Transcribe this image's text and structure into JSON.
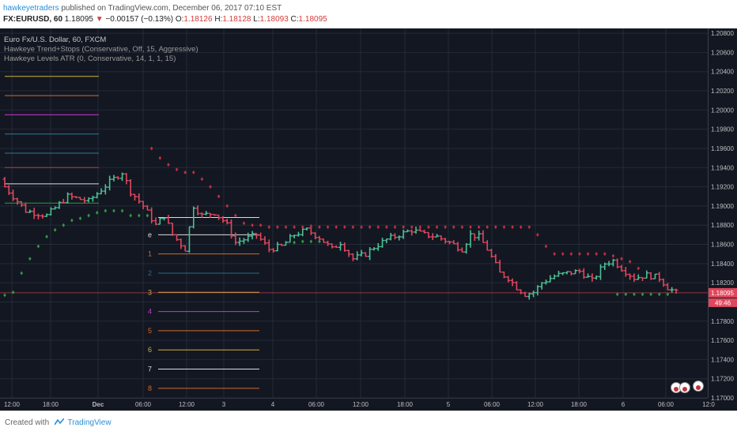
{
  "header": {
    "author": "hawkeyetraders",
    "published_text": "published on TradingView.com, December 06, 2017 07:10 EST",
    "symbol": "FX:EURUSD, 60",
    "last": "1.18095",
    "change": "−0.00157 (−0.13%)",
    "open_label": "O:",
    "open": "1.18126",
    "high_label": "H:",
    "high": "1.18128",
    "low_label": "L:",
    "low": "1.18093",
    "close_label": "C:",
    "close": "1.18095"
  },
  "legend": {
    "title": "Euro Fx/U.S. Dollar, 60, FXCM",
    "study1": "Hawkeye Trend+Stops (Conservative, Off, 15, Aggressive)",
    "study2": "Hawkeye Levels ATR (0, Conservative, 14, 1, 1, 15)"
  },
  "footer": {
    "created_with": "Created with",
    "brand": "TradingView"
  },
  "colors": {
    "background": "#131722",
    "grid": "#232a38",
    "up": "#4cbf94",
    "down": "#e0475d",
    "stop_red": "#c0313d",
    "stop_green": "#2f9a40",
    "price_tag": "#e0475d",
    "axis_text": "#bfbfbf"
  },
  "chart_data": {
    "type": "ohlc",
    "symbol": "EURUSD",
    "timeframe": "60",
    "ylim": [
      1.17,
      1.2085
    ],
    "y_ticks": [
      "1.20800",
      "1.20600",
      "1.20400",
      "1.20200",
      "1.20000",
      "1.19800",
      "1.19600",
      "1.19400",
      "1.19200",
      "1.19000",
      "1.18800",
      "1.18600",
      "1.18400",
      "1.18200",
      "1.18000",
      "1.17800",
      "1.17600",
      "1.17400",
      "1.17200",
      "1.17000"
    ],
    "x_ticks": [
      "12:00",
      "18:00",
      "Dec",
      "06:00",
      "12:00",
      "3",
      "4",
      "06:00",
      "12:00",
      "18:00",
      "5",
      "06:00",
      "12:00",
      "18:00",
      "6",
      "06:00",
      "12:0"
    ],
    "last_price": "1.18095",
    "countdown": "49:46",
    "close_path": [
      [
        0,
        1.192
      ],
      [
        5,
        1.1895
      ],
      [
        10,
        1.189
      ],
      [
        15,
        1.191
      ],
      [
        20,
        1.1905
      ],
      [
        25,
        1.1925
      ],
      [
        28,
        1.1935
      ],
      [
        30,
        1.1915
      ],
      [
        33,
        1.19
      ],
      [
        36,
        1.188
      ],
      [
        38,
        1.189
      ],
      [
        40,
        1.187
      ],
      [
        43,
        1.1855
      ],
      [
        45,
        1.19
      ],
      [
        47,
        1.189
      ],
      [
        50,
        1.1893
      ],
      [
        52,
        1.1885
      ],
      [
        53,
        1.188
      ],
      [
        55,
        1.1862
      ],
      [
        60,
        1.187
      ],
      [
        63,
        1.1855
      ],
      [
        66,
        1.1858
      ],
      [
        69,
        1.187
      ],
      [
        72,
        1.1875
      ],
      [
        75,
        1.1867
      ],
      [
        78,
        1.1855
      ],
      [
        80,
        1.1862
      ],
      [
        83,
        1.1845
      ],
      [
        86,
        1.185
      ],
      [
        88,
        1.1857
      ],
      [
        91,
        1.1865
      ],
      [
        94,
        1.187
      ],
      [
        97,
        1.1875
      ],
      [
        100,
        1.187
      ],
      [
        103,
        1.1868
      ],
      [
        106,
        1.1862
      ],
      [
        109,
        1.1855
      ],
      [
        111,
        1.187
      ],
      [
        113,
        1.1868
      ],
      [
        115,
        1.1855
      ],
      [
        118,
        1.183
      ],
      [
        120,
        1.1825
      ],
      [
        122,
        1.1815
      ],
      [
        124,
        1.1808
      ],
      [
        126,
        1.181
      ],
      [
        128,
        1.182
      ],
      [
        131,
        1.1827
      ],
      [
        134,
        1.183
      ],
      [
        137,
        1.1832
      ],
      [
        140,
        1.1822
      ],
      [
        143,
        1.184
      ],
      [
        145,
        1.1843
      ],
      [
        147,
        1.1835
      ],
      [
        150,
        1.1825
      ],
      [
        153,
        1.1828
      ],
      [
        156,
        1.1825
      ],
      [
        158,
        1.1815
      ],
      [
        160,
        1.18095
      ]
    ],
    "stops": {
      "green": [
        [
          0,
          1.1807
        ],
        [
          2,
          1.181
        ],
        [
          4,
          1.183
        ],
        [
          6,
          1.1845
        ],
        [
          8,
          1.1858
        ],
        [
          10,
          1.1868
        ],
        [
          12,
          1.1875
        ],
        [
          14,
          1.188
        ],
        [
          16,
          1.1885
        ],
        [
          18,
          1.1887
        ],
        [
          20,
          1.189
        ],
        [
          22,
          1.1893
        ],
        [
          24,
          1.1895
        ],
        [
          26,
          1.1895
        ],
        [
          28,
          1.1895
        ],
        [
          30,
          1.189
        ],
        [
          32,
          1.189
        ],
        [
          34,
          1.189
        ],
        [
          69,
          1.1862
        ],
        [
          71,
          1.1863
        ],
        [
          73,
          1.1863
        ],
        [
          75,
          1.1863
        ],
        [
          146,
          1.1808
        ],
        [
          148,
          1.1808
        ],
        [
          150,
          1.1808
        ],
        [
          152,
          1.1808
        ],
        [
          154,
          1.1808
        ],
        [
          156,
          1.1808
        ],
        [
          158,
          1.1808
        ]
      ],
      "red": [
        [
          35,
          1.196
        ],
        [
          37,
          1.195
        ],
        [
          39,
          1.1943
        ],
        [
          41,
          1.1938
        ],
        [
          43,
          1.1935
        ],
        [
          45,
          1.1935
        ],
        [
          47,
          1.1928
        ],
        [
          49,
          1.192
        ],
        [
          51,
          1.191
        ],
        [
          53,
          1.19
        ],
        [
          55,
          1.189
        ],
        [
          57,
          1.1882
        ],
        [
          59,
          1.188
        ],
        [
          61,
          1.188
        ],
        [
          63,
          1.1878
        ],
        [
          65,
          1.1878
        ],
        [
          67,
          1.1878
        ],
        [
          69,
          1.1878
        ],
        [
          71,
          1.1878
        ],
        [
          73,
          1.1878
        ],
        [
          75,
          1.1878
        ],
        [
          77,
          1.1878
        ],
        [
          79,
          1.1878
        ],
        [
          81,
          1.1878
        ],
        [
          83,
          1.1878
        ],
        [
          85,
          1.1878
        ],
        [
          87,
          1.1878
        ],
        [
          89,
          1.1878
        ],
        [
          91,
          1.1878
        ],
        [
          93,
          1.1878
        ],
        [
          95,
          1.1878
        ],
        [
          97,
          1.1878
        ],
        [
          99,
          1.1878
        ],
        [
          101,
          1.1878
        ],
        [
          103,
          1.1878
        ],
        [
          105,
          1.1878
        ],
        [
          107,
          1.1878
        ],
        [
          109,
          1.1878
        ],
        [
          111,
          1.1878
        ],
        [
          113,
          1.1878
        ],
        [
          115,
          1.1878
        ],
        [
          117,
          1.1878
        ],
        [
          119,
          1.1878
        ],
        [
          121,
          1.1878
        ],
        [
          123,
          1.1878
        ],
        [
          125,
          1.1878
        ],
        [
          127,
          1.187
        ],
        [
          129,
          1.1858
        ],
        [
          131,
          1.185
        ],
        [
          133,
          1.185
        ],
        [
          135,
          1.185
        ],
        [
          137,
          1.185
        ],
        [
          139,
          1.185
        ],
        [
          141,
          1.185
        ],
        [
          143,
          1.185
        ],
        [
          145,
          1.1848
        ],
        [
          147,
          1.1845
        ],
        [
          149,
          1.1842
        ],
        [
          151,
          1.1835
        ]
      ]
    },
    "levels_left": [
      {
        "y": 1.2035,
        "color": "#c9b23a"
      },
      {
        "y": 1.2015,
        "color": "#d06a2a"
      },
      {
        "y": 1.1995,
        "color": "#c43ac8"
      },
      {
        "y": 1.1975,
        "color": "#2a7a9a"
      },
      {
        "y": 1.1955,
        "color": "#2a7a9a"
      },
      {
        "y": 1.194,
        "color": "#c03a3a"
      },
      {
        "y": 1.1923,
        "color": "#dddddd"
      },
      {
        "y": 1.1903,
        "color": "#2f9a40"
      }
    ],
    "levels_right": [
      {
        "label": "",
        "y": 1.1888,
        "color": "#dddddd"
      },
      {
        "label": "e",
        "y": 1.187,
        "color": "#dddddd"
      },
      {
        "label": "1",
        "y": 1.185,
        "color": "#d06a2a"
      },
      {
        "label": "2",
        "y": 1.183,
        "color": "#2a6a8a"
      },
      {
        "label": "3",
        "y": 1.181,
        "color": "#c9b23a"
      },
      {
        "label": "4",
        "y": 1.179,
        "color": "#c43ac8"
      },
      {
        "label": "5",
        "y": 1.177,
        "color": "#d06a2a"
      },
      {
        "label": "6",
        "y": 1.175,
        "color": "#c9b23a"
      },
      {
        "label": "7",
        "y": 1.173,
        "color": "#dddddd"
      },
      {
        "label": "8",
        "y": 1.171,
        "color": "#d06a2a"
      }
    ]
  }
}
